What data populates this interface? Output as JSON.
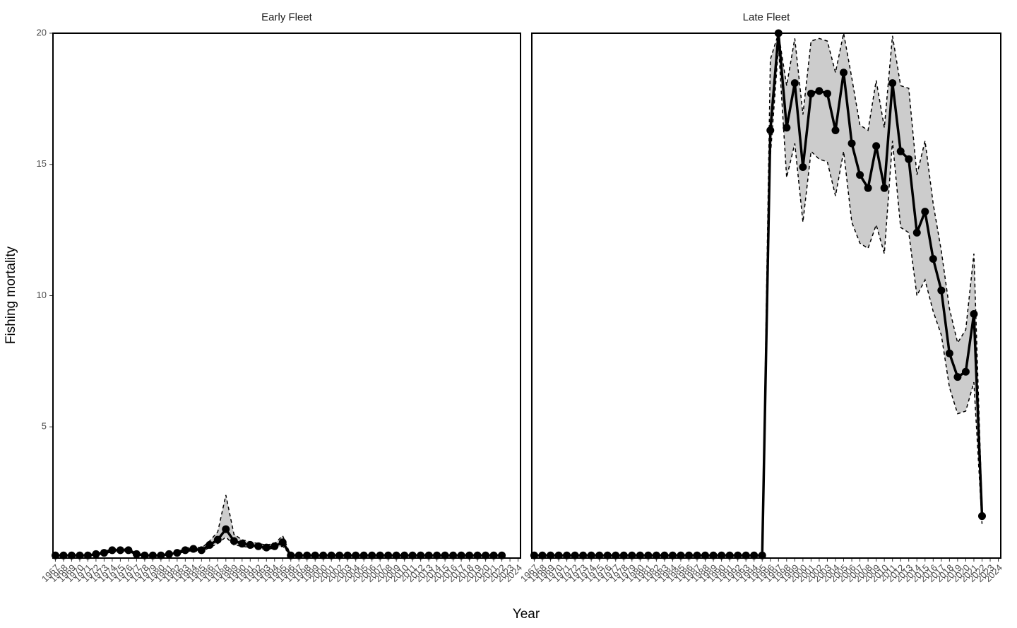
{
  "chart_data": [
    {
      "type": "line",
      "title": "Early Fleet",
      "xlabel": "Year",
      "ylabel": "Fishing mortality",
      "x": [
        1967,
        1968,
        1969,
        1970,
        1971,
        1972,
        1973,
        1974,
        1975,
        1976,
        1977,
        1978,
        1979,
        1980,
        1981,
        1982,
        1983,
        1984,
        1985,
        1986,
        1987,
        1988,
        1989,
        1990,
        1991,
        1992,
        1993,
        1994,
        1995,
        1996,
        1997,
        1998,
        1999,
        2000,
        2001,
        2002,
        2003,
        2004,
        2005,
        2006,
        2007,
        2008,
        2009,
        2010,
        2011,
        2012,
        2013,
        2014,
        2015,
        2016,
        2017,
        2018,
        2019,
        2020,
        2021,
        2022
      ],
      "series": [
        {
          "color": "#000000",
          "ribbon_color": "#cccccc",
          "values": [
            0.1,
            0.1,
            0.1,
            0.1,
            0.1,
            0.15,
            0.2,
            0.3,
            0.3,
            0.3,
            0.15,
            0.1,
            0.1,
            0.1,
            0.15,
            0.2,
            0.3,
            0.35,
            0.3,
            0.5,
            0.7,
            1.1,
            0.65,
            0.55,
            0.5,
            0.45,
            0.4,
            0.45,
            0.6,
            0.1,
            0.1,
            0.1,
            0.1,
            0.1,
            0.1,
            0.1,
            0.1,
            0.1,
            0.1,
            0.1,
            0.1,
            0.1,
            0.1,
            0.1,
            0.1,
            0.1,
            0.1,
            0.1,
            0.1,
            0.1,
            0.1,
            0.1,
            0.1,
            0.1,
            0.1,
            0.1
          ],
          "lower": [
            0.1,
            0.1,
            0.1,
            0.1,
            0.1,
            0.12,
            0.15,
            0.25,
            0.25,
            0.25,
            0.12,
            0.1,
            0.1,
            0.1,
            0.12,
            0.15,
            0.25,
            0.28,
            0.25,
            0.4,
            0.55,
            0.8,
            0.5,
            0.45,
            0.4,
            0.38,
            0.33,
            0.38,
            0.45,
            0.1,
            0.1,
            0.1,
            0.1,
            0.1,
            0.1,
            0.1,
            0.1,
            0.1,
            0.1,
            0.1,
            0.1,
            0.1,
            0.1,
            0.1,
            0.1,
            0.1,
            0.1,
            0.1,
            0.1,
            0.1,
            0.1,
            0.1,
            0.1,
            0.1,
            0.1,
            0.1
          ],
          "upper": [
            0.1,
            0.1,
            0.1,
            0.1,
            0.1,
            0.18,
            0.25,
            0.35,
            0.35,
            0.35,
            0.18,
            0.1,
            0.1,
            0.1,
            0.18,
            0.25,
            0.35,
            0.45,
            0.38,
            0.65,
            1.0,
            2.4,
            0.9,
            0.7,
            0.62,
            0.55,
            0.5,
            0.55,
            0.85,
            0.1,
            0.1,
            0.1,
            0.1,
            0.1,
            0.1,
            0.1,
            0.1,
            0.1,
            0.1,
            0.1,
            0.1,
            0.1,
            0.1,
            0.1,
            0.1,
            0.1,
            0.1,
            0.1,
            0.1,
            0.1,
            0.1,
            0.1,
            0.1,
            0.1,
            0.1,
            0.1
          ]
        }
      ],
      "xlim": [
        1966.7,
        2024.3
      ],
      "xticks": [
        1967,
        1968,
        1969,
        1970,
        1971,
        1972,
        1973,
        1974,
        1975,
        1976,
        1977,
        1978,
        1979,
        1980,
        1981,
        1982,
        1983,
        1984,
        1985,
        1986,
        1987,
        1988,
        1989,
        1990,
        1991,
        1992,
        1993,
        1994,
        1995,
        1996,
        1997,
        1998,
        1999,
        2000,
        2001,
        2002,
        2003,
        2004,
        2005,
        2006,
        2007,
        2008,
        2009,
        2010,
        2011,
        2012,
        2013,
        2014,
        2015,
        2016,
        2017,
        2018,
        2019,
        2020,
        2021,
        2022,
        2023,
        2024
      ],
      "ylim": [
        0,
        20
      ],
      "yticks": [
        5,
        10,
        15,
        20
      ]
    },
    {
      "type": "line",
      "title": "Late Fleet",
      "x": [
        1967,
        1968,
        1969,
        1970,
        1971,
        1972,
        1973,
        1974,
        1975,
        1976,
        1977,
        1978,
        1979,
        1980,
        1981,
        1982,
        1983,
        1984,
        1985,
        1986,
        1987,
        1988,
        1989,
        1990,
        1991,
        1992,
        1993,
        1994,
        1995,
        1996,
        1997,
        1998,
        1999,
        2000,
        2001,
        2002,
        2003,
        2004,
        2005,
        2006,
        2007,
        2008,
        2009,
        2010,
        2011,
        2012,
        2013,
        2014,
        2015,
        2016,
        2017,
        2018,
        2019,
        2020,
        2021,
        2022
      ],
      "series": [
        {
          "color": "#000000",
          "ribbon_color": "#cccccc",
          "values": [
            0.1,
            0.1,
            0.1,
            0.1,
            0.1,
            0.1,
            0.1,
            0.1,
            0.1,
            0.1,
            0.1,
            0.1,
            0.1,
            0.1,
            0.1,
            0.1,
            0.1,
            0.1,
            0.1,
            0.1,
            0.1,
            0.1,
            0.1,
            0.1,
            0.1,
            0.1,
            0.1,
            0.1,
            0.1,
            16.3,
            20,
            16.4,
            18.1,
            14.9,
            17.7,
            17.8,
            17.7,
            16.3,
            18.5,
            15.8,
            14.6,
            14.1,
            15.7,
            14.1,
            18.1,
            15.5,
            15.2,
            12.4,
            13.2,
            11.4,
            10.2,
            7.8,
            6.9,
            7.1,
            9.3,
            1.6
          ],
          "lower": [
            0.1,
            0.1,
            0.1,
            0.1,
            0.1,
            0.1,
            0.1,
            0.1,
            0.1,
            0.1,
            0.1,
            0.1,
            0.1,
            0.1,
            0.1,
            0.1,
            0.1,
            0.1,
            0.1,
            0.1,
            0.1,
            0.1,
            0.1,
            0.1,
            0.1,
            0.1,
            0.1,
            0.1,
            0.1,
            15.3,
            19.5,
            14.5,
            15.8,
            12.8,
            15.5,
            15.2,
            15.1,
            13.8,
            15.5,
            12.8,
            12.0,
            11.8,
            12.7,
            11.6,
            15.9,
            12.6,
            12.4,
            10.0,
            10.6,
            9.4,
            8.5,
            6.5,
            5.5,
            5.6,
            6.7,
            1.3
          ],
          "upper": [
            0.1,
            0.1,
            0.1,
            0.1,
            0.1,
            0.1,
            0.1,
            0.1,
            0.1,
            0.1,
            0.1,
            0.1,
            0.1,
            0.1,
            0.1,
            0.1,
            0.1,
            0.1,
            0.1,
            0.1,
            0.1,
            0.1,
            0.1,
            0.1,
            0.1,
            0.1,
            0.1,
            0.1,
            0.1,
            19.0,
            20,
            18.0,
            19.8,
            16.9,
            19.7,
            19.8,
            19.7,
            18.5,
            20,
            18.3,
            16.5,
            16.3,
            18.2,
            16.4,
            19.9,
            18.0,
            17.9,
            14.6,
            15.9,
            13.5,
            11.7,
            9.5,
            8.2,
            8.7,
            11.6,
            1.9
          ]
        }
      ],
      "xlim": [
        1966.7,
        2024.3
      ],
      "xticks": [
        1967,
        1968,
        1969,
        1970,
        1971,
        1972,
        1973,
        1974,
        1975,
        1976,
        1977,
        1978,
        1979,
        1980,
        1981,
        1982,
        1983,
        1984,
        1985,
        1986,
        1987,
        1988,
        1989,
        1990,
        1991,
        1992,
        1993,
        1994,
        1995,
        1996,
        1997,
        1998,
        1999,
        2000,
        2001,
        2002,
        2003,
        2004,
        2005,
        2006,
        2007,
        2008,
        2009,
        2010,
        2011,
        2012,
        2013,
        2014,
        2015,
        2016,
        2017,
        2018,
        2019,
        2020,
        2021,
        2022,
        2023,
        2024
      ],
      "ylim": [
        0,
        20
      ]
    }
  ]
}
